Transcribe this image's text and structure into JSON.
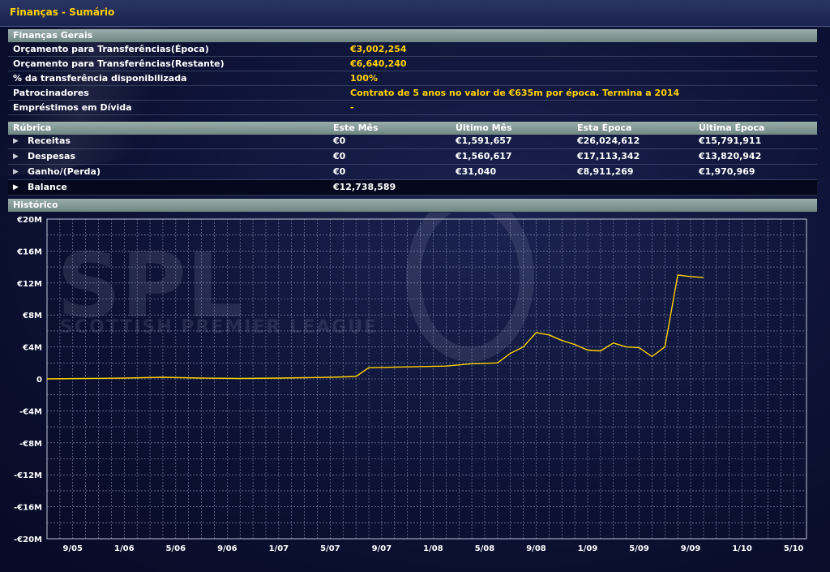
{
  "window": {
    "title": "Finanças - Sumário"
  },
  "general": {
    "header": "Finanças Gerais",
    "rows": [
      {
        "label": "Orçamento para Transferências(Época)",
        "value": "€3,002,254"
      },
      {
        "label": "Orçamento para Transferências(Restante)",
        "value": "€6,640,240"
      },
      {
        "label": "% da transferência disponibilizada",
        "value": "100%"
      },
      {
        "label": "Patrocinadores",
        "value": "Contrato de 5 anos no valor de €635m por época. Termina a 2014"
      },
      {
        "label": "Empréstimos em Dívida",
        "value": "-"
      }
    ]
  },
  "budget_table": {
    "headers": [
      "Rúbrica",
      "Este Mês",
      "Último Mês",
      "Esta Época",
      "Última Época"
    ],
    "rows": [
      {
        "name": "Receitas",
        "values": [
          "€0",
          "€1,591,657",
          "€26,024,612",
          "€15,791,911"
        ]
      },
      {
        "name": "Despesas",
        "values": [
          "€0",
          "€1,560,617",
          "€17,113,342",
          "€13,820,942"
        ]
      },
      {
        "name": "Ganho/(Perda)",
        "values": [
          "€0",
          "€31,040",
          "€8,911,269",
          "€1,970,969"
        ]
      }
    ],
    "balance": {
      "name": "Balance",
      "value": "€12,738,589"
    }
  },
  "history": {
    "header": "Histórico"
  },
  "watermark": {
    "logo": "SPL",
    "subtitle": "SCOTTISH PREMIER LEAGUE"
  },
  "colors": {
    "accent": "#ffd200",
    "header_bg": "#8ea29f",
    "line": "#ffd200"
  },
  "chart_data": {
    "type": "line",
    "title": "",
    "xlabel": "",
    "ylabel": "",
    "ylim": [
      -20,
      20
    ],
    "y_unit": "€M",
    "y_ticks": [
      "€20M",
      "€16M",
      "€12M",
      "€8M",
      "€4M",
      "0",
      "-€4M",
      "-€8M",
      "-€12M",
      "-€16M",
      "-€20M"
    ],
    "x_ticks": [
      "9/05",
      "1/06",
      "5/06",
      "9/06",
      "1/07",
      "5/07",
      "9/07",
      "1/08",
      "5/08",
      "9/08",
      "1/09",
      "5/09",
      "9/09",
      "1/10",
      "5/10"
    ],
    "x_range_months": [
      "2005-07",
      "2010-06"
    ],
    "grid": true,
    "series": [
      {
        "values": [
          [
            "2005-07",
            0.0
          ],
          [
            "2005-10",
            0.05
          ],
          [
            "2006-01",
            0.1
          ],
          [
            "2006-04",
            0.2
          ],
          [
            "2006-07",
            0.1
          ],
          [
            "2006-10",
            0.05
          ],
          [
            "2007-01",
            0.1
          ],
          [
            "2007-03",
            0.15
          ],
          [
            "2007-05",
            0.2
          ],
          [
            "2007-07",
            0.3
          ],
          [
            "2007-08",
            1.4
          ],
          [
            "2007-11",
            1.5
          ],
          [
            "2008-02",
            1.6
          ],
          [
            "2008-04",
            1.9
          ],
          [
            "2008-06",
            2.0
          ],
          [
            "2008-07",
            3.2
          ],
          [
            "2008-08",
            4.0
          ],
          [
            "2008-09",
            5.8
          ],
          [
            "2008-10",
            5.5
          ],
          [
            "2008-11",
            4.8
          ],
          [
            "2008-12",
            4.3
          ],
          [
            "2009-01",
            3.6
          ],
          [
            "2009-02",
            3.5
          ],
          [
            "2009-03",
            4.5
          ],
          [
            "2009-04",
            4.0
          ],
          [
            "2009-05",
            3.9
          ],
          [
            "2009-06",
            2.8
          ],
          [
            "2009-07",
            4.0
          ],
          [
            "2009-08",
            13.0
          ],
          [
            "2009-09",
            12.8
          ],
          [
            "2009-10",
            12.7
          ]
        ]
      }
    ]
  }
}
